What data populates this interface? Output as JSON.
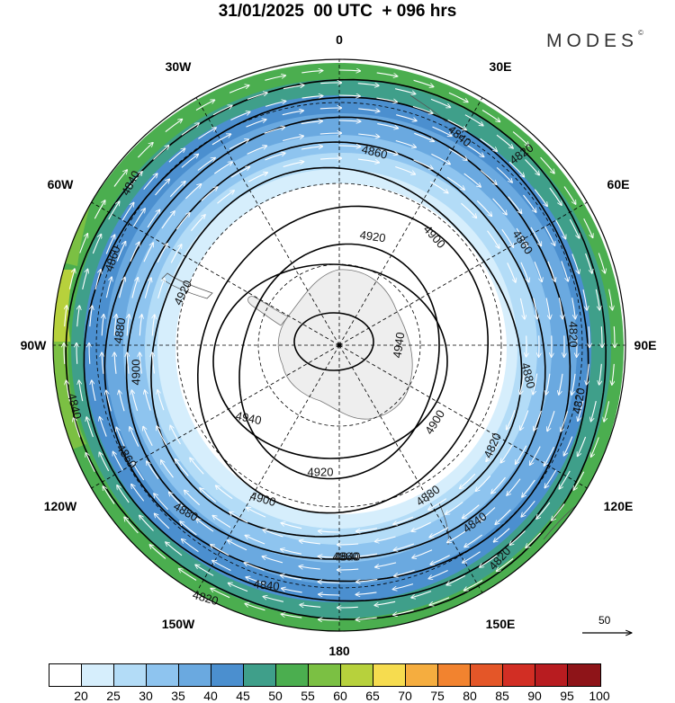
{
  "title": "31/01/2025  00 UTC  + 096 hrs",
  "brand": {
    "name": "MODES",
    "mark": "©"
  },
  "longitude_labels": [
    {
      "text": "0",
      "lon_deg": 0
    },
    {
      "text": "30E",
      "lon_deg": 30
    },
    {
      "text": "60E",
      "lon_deg": 60
    },
    {
      "text": "90E",
      "lon_deg": 90
    },
    {
      "text": "120E",
      "lon_deg": 120
    },
    {
      "text": "150E",
      "lon_deg": 150
    },
    {
      "text": "180",
      "lon_deg": 180
    },
    {
      "text": "150W",
      "lon_deg": 210
    },
    {
      "text": "120W",
      "lon_deg": 240
    },
    {
      "text": "90W",
      "lon_deg": 270
    },
    {
      "text": "60W",
      "lon_deg": 300
    },
    {
      "text": "30W",
      "lon_deg": 330
    }
  ],
  "contour_labels": [
    "4820",
    "4840",
    "4860",
    "4880",
    "4900",
    "4920",
    "4940"
  ],
  "reference_vector": {
    "value": "50"
  },
  "colorbar": {
    "labels": [
      "20",
      "25",
      "30",
      "35",
      "40",
      "45",
      "50",
      "55",
      "60",
      "65",
      "70",
      "75",
      "80",
      "85",
      "90",
      "95",
      "100"
    ],
    "colors": [
      "#ffffff",
      "#d6eefc",
      "#b3dcf7",
      "#8ec4ef",
      "#6aa9e0",
      "#4b8fcf",
      "#3f9f8a",
      "#4bae4f",
      "#7bc043",
      "#b7d13c",
      "#f6dc4f",
      "#f5ad3f",
      "#f2832f",
      "#e45628",
      "#d22e24",
      "#b81c20",
      "#8e1418"
    ]
  },
  "colors": {
    "land": "#eeeeee",
    "coast": "#666666",
    "contour": "#000000",
    "wind": "#ffffff"
  }
}
